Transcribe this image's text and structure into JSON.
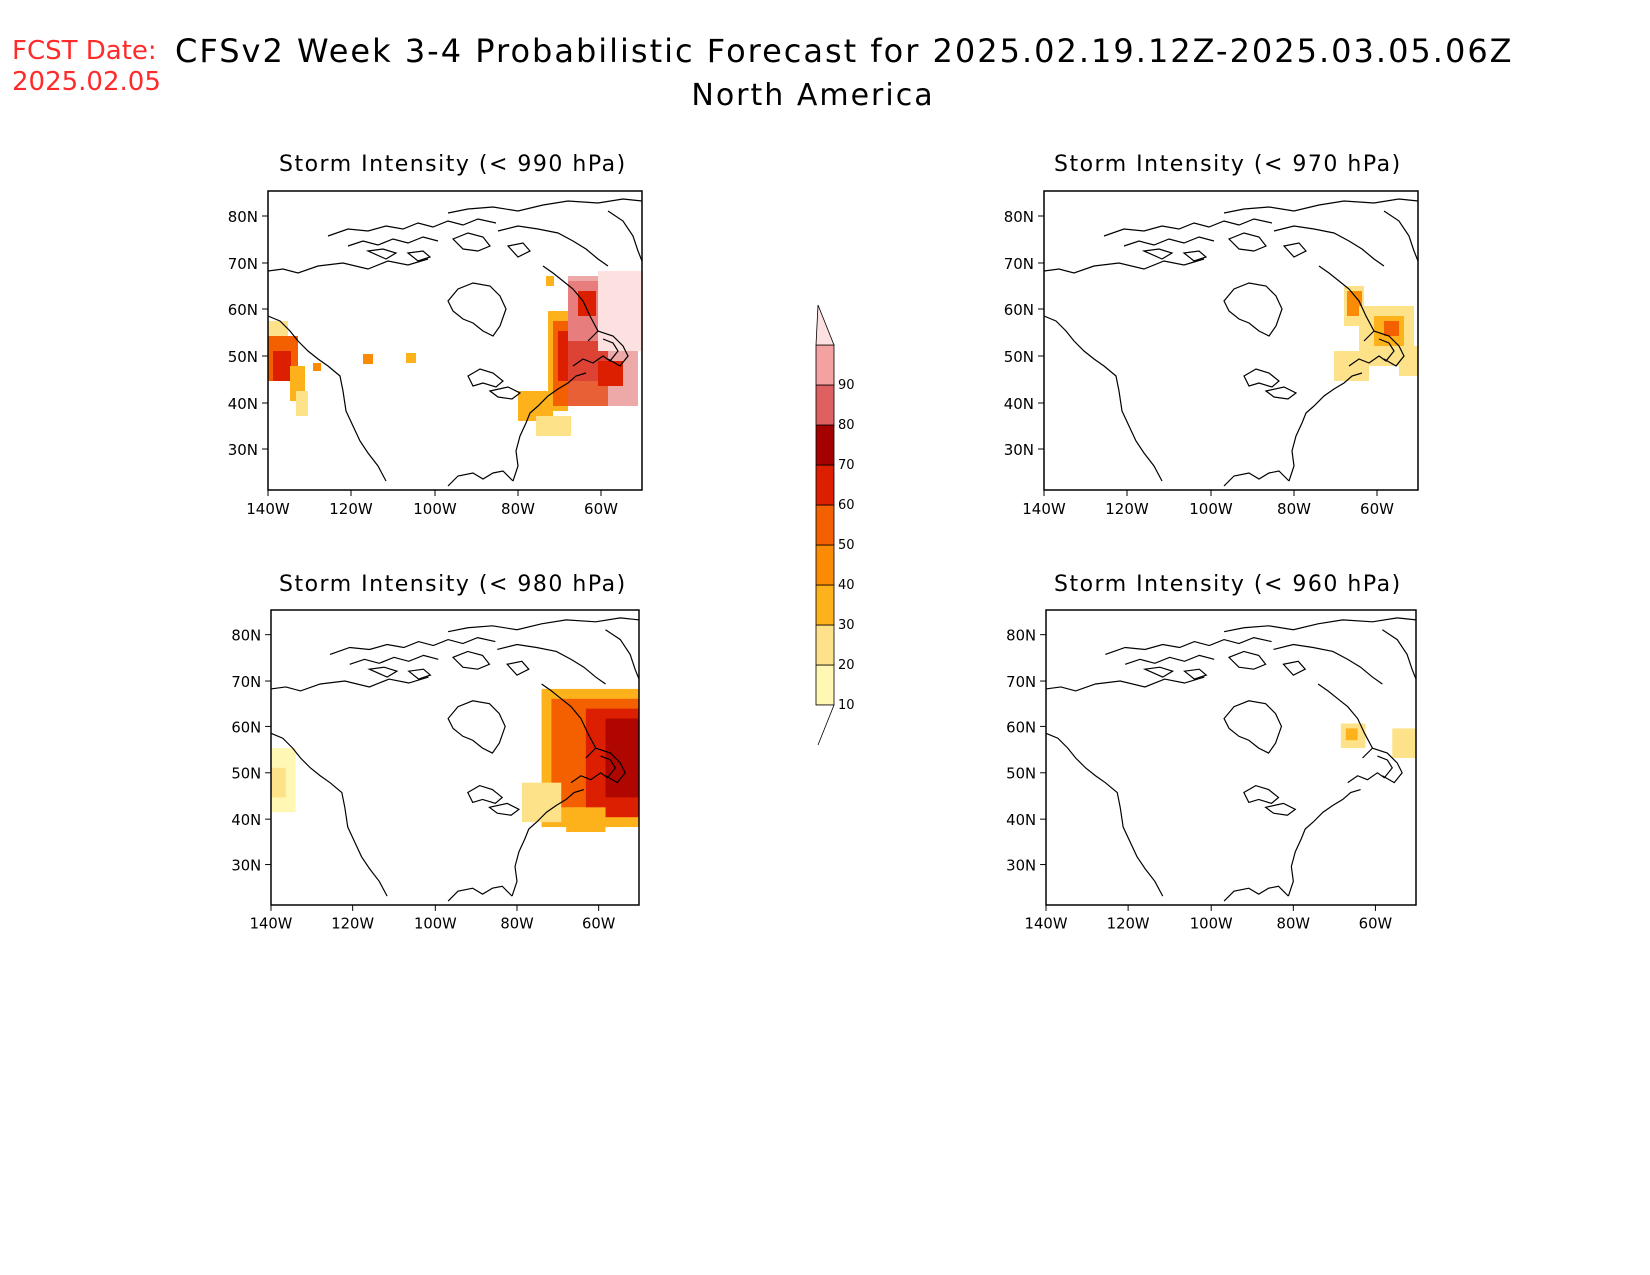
{
  "header": {
    "fcst_label": "FCST Date:",
    "fcst_date": "2025.02.05",
    "title": "CFSv2 Week 3-4 Probabilistic Forecast for 2025.02.19.12Z-2025.03.05.06Z",
    "region": "North America"
  },
  "axes": {
    "lat_ticks": [
      "80N",
      "70N",
      "60N",
      "50N",
      "40N",
      "30N"
    ],
    "lon_ticks": [
      "140W",
      "120W",
      "100W",
      "80W",
      "60W"
    ]
  },
  "panels": [
    {
      "id": "p990",
      "title": "Storm Intensity (< 990 hPa)"
    },
    {
      "id": "p970",
      "title": "Storm Intensity (< 970 hPa)"
    },
    {
      "id": "p980",
      "title": "Storm Intensity (< 980 hPa)"
    },
    {
      "id": "p960",
      "title": "Storm Intensity (< 960 hPa)"
    }
  ],
  "colorbar": {
    "labels": [
      "10",
      "20",
      "30",
      "40",
      "50",
      "60",
      "70",
      "80",
      "90"
    ],
    "colors": [
      "#fff7b3",
      "#fde28a",
      "#fdb21c",
      "#fb8a04",
      "#f45f00",
      "#dc1f00",
      "#a50000",
      "#de6060",
      "#f3a1a1",
      "#fde0e0"
    ]
  }
}
